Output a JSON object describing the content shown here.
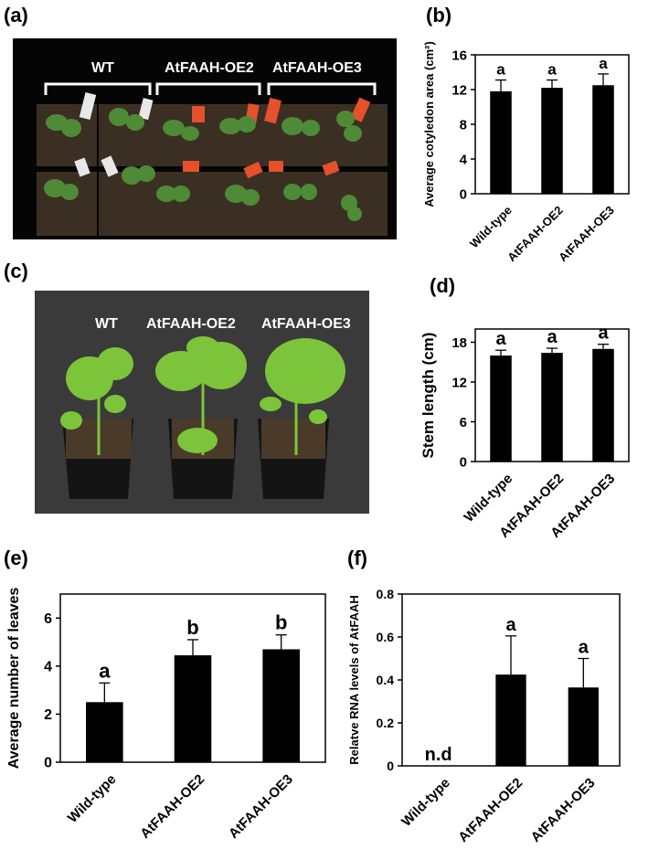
{
  "panel_labels": {
    "a": "(a)",
    "b": "(b)",
    "c": "(c)",
    "d": "(d)",
    "e": "(e)",
    "f": "(f)"
  },
  "photo_a": {
    "labels": [
      "WT",
      "AtFAAH-OE2",
      "AtFAAH-OE3"
    ],
    "colors": {
      "background": "#050505",
      "soil": "#3b2f24",
      "leaf": "#4f8a36",
      "tag_wt": "#e8e8e8",
      "tag_oe": "#e4512a"
    }
  },
  "photo_c": {
    "labels": [
      "WT",
      "AtFAAH-OE2",
      "AtFAAH-OE3"
    ],
    "colors": {
      "background": "#3a3a3a",
      "pot": "#141414",
      "leaf": "#7cc43a"
    }
  },
  "chart_data": [
    {
      "id": "b",
      "type": "bar",
      "categories": [
        "Wild-type",
        "AtFAAH-OE2",
        "AtFAAH-OE3"
      ],
      "values": [
        11.8,
        12.2,
        12.5
      ],
      "errors": [
        1.3,
        0.9,
        1.3
      ],
      "annotations": [
        "a",
        "a",
        "a"
      ],
      "ylabel": "Average cotyledon area (cm²)",
      "ylim": [
        0,
        16
      ],
      "yticks": [
        "0",
        "4",
        "8",
        "12",
        "16"
      ],
      "bar_color": "#000000",
      "grid": false,
      "legend": "none"
    },
    {
      "id": "d",
      "type": "bar",
      "categories": [
        "Wild-type",
        "AtFAAH-OE2",
        "AtFAAH-OE3"
      ],
      "values": [
        16.0,
        16.4,
        17.0
      ],
      "errors": [
        0.8,
        0.7,
        0.7
      ],
      "annotations": [
        "a",
        "a",
        "a"
      ],
      "ylabel": "Stem length (cm)",
      "ylim": [
        0,
        20
      ],
      "yticks": [
        "0",
        "6",
        "12",
        "18"
      ],
      "bar_color": "#000000",
      "grid": false,
      "legend": "none"
    },
    {
      "id": "e",
      "type": "bar",
      "categories": [
        "Wild-type",
        "AtFAAH-OE2",
        "AtFAAH-OE3"
      ],
      "values": [
        2.5,
        4.45,
        4.7
      ],
      "errors": [
        0.8,
        0.65,
        0.6
      ],
      "annotations": [
        "a",
        "b",
        "b"
      ],
      "ylabel": "Average number of leaves",
      "ylim": [
        0,
        7
      ],
      "yticks": [
        "0",
        "2",
        "4",
        "6"
      ],
      "bar_color": "#000000",
      "grid": false,
      "legend": "none"
    },
    {
      "id": "f",
      "type": "bar",
      "categories": [
        "Wild-type",
        "AtFAAH-OE2",
        "AtFAAH-OE3"
      ],
      "values": [
        0,
        0.425,
        0.365
      ],
      "errors": [
        0,
        0.18,
        0.135
      ],
      "annotations": [
        "n.d",
        "a",
        "a"
      ],
      "ylabel": "Relatve RNA levels of AtFAAH",
      "ylim": [
        0,
        0.8
      ],
      "yticks": [
        "0",
        "0.2",
        "0.4",
        "0.6",
        "0.8"
      ],
      "bar_color": "#000000",
      "grid": false,
      "legend": "none"
    }
  ]
}
